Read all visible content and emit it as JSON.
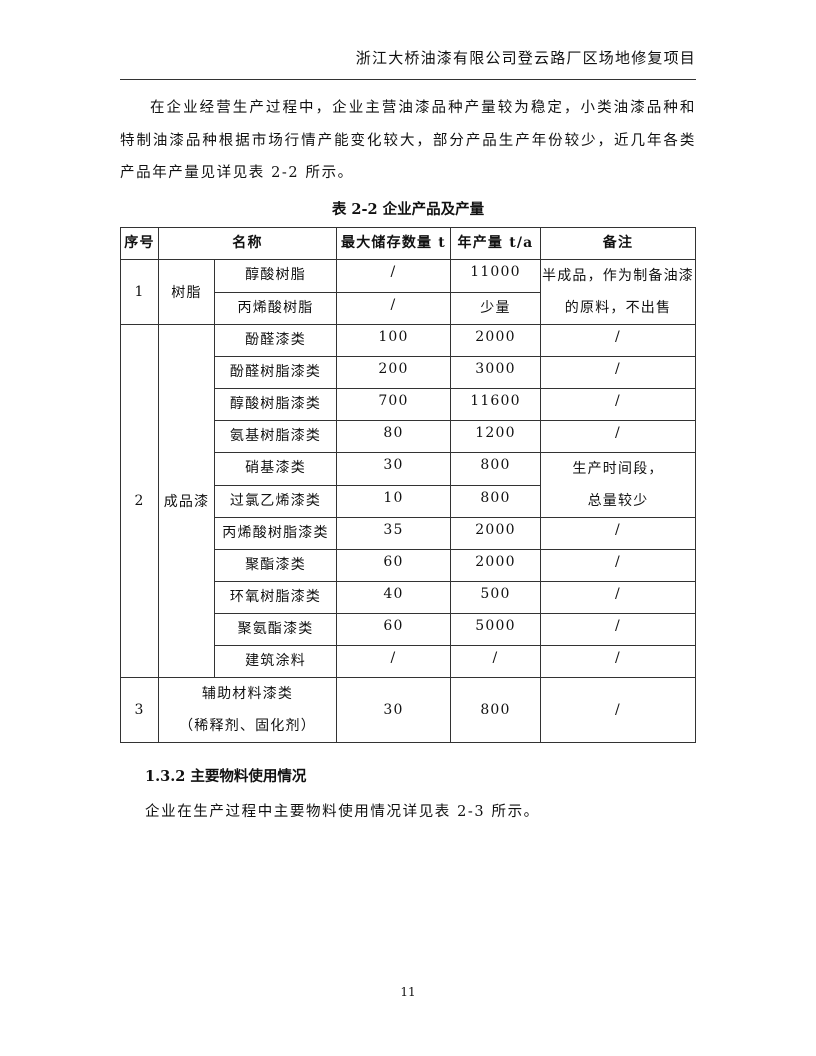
{
  "header": {
    "title": "浙江大桥油漆有限公司登云路厂区场地修复项目"
  },
  "intro": "在企业经营生产过程中，企业主营油漆品种产量较为稳定，小类油漆品种和特制油漆品种根据市场行情产能变化较大，部分产品生产年份较少，近几年各类产品年产量见详见表 2-2 所示。",
  "table": {
    "caption": "表 2-2  企业产品及产量",
    "headers": [
      "序号",
      "名称",
      "最大储存数量 t",
      "年产量 t/a",
      "备注"
    ],
    "group1": {
      "no": "1",
      "category": "树脂",
      "note": "半成品，作为制备油漆的原料，不出售",
      "rows": [
        {
          "name": "醇酸树脂",
          "storage": "/",
          "output": "11000"
        },
        {
          "name": "丙烯酸树脂",
          "storage": "/",
          "output": "少量"
        }
      ]
    },
    "group2": {
      "no": "2",
      "category": "成品漆",
      "shared_note": "生产时间段，总量较少",
      "rows": [
        {
          "name": "酚醛漆类",
          "storage": "100",
          "output": "2000",
          "note": "/"
        },
        {
          "name": "酚醛树脂漆类",
          "storage": "200",
          "output": "3000",
          "note": "/"
        },
        {
          "name": "醇酸树脂漆类",
          "storage": "700",
          "output": "11600",
          "note": "/"
        },
        {
          "name": "氨基树脂漆类",
          "storage": "80",
          "output": "1200",
          "note": "/"
        },
        {
          "name": "硝基漆类",
          "storage": "30",
          "output": "800"
        },
        {
          "name": "过氯乙烯漆类",
          "storage": "10",
          "output": "800"
        },
        {
          "name": "丙烯酸树脂漆类",
          "storage": "35",
          "output": "2000",
          "note": "/"
        },
        {
          "name": "聚酯漆类",
          "storage": "60",
          "output": "2000",
          "note": "/"
        },
        {
          "name": "环氧树脂漆类",
          "storage": "40",
          "output": "500",
          "note": "/"
        },
        {
          "name": "聚氨酯漆类",
          "storage": "60",
          "output": "5000",
          "note": "/"
        },
        {
          "name": "建筑涂料",
          "storage": "/",
          "output": "/",
          "note": "/"
        }
      ]
    },
    "group3": {
      "no": "3",
      "name_line1": "辅助材料漆类",
      "name_line2": "（稀释剂、固化剂）",
      "storage": "30",
      "output": "800",
      "note": "/"
    }
  },
  "section": {
    "heading": "1.3.2 主要物料使用情况",
    "text": "企业在生产过程中主要物料使用情况详见表 2-3 所示。"
  },
  "page_number": "11"
}
